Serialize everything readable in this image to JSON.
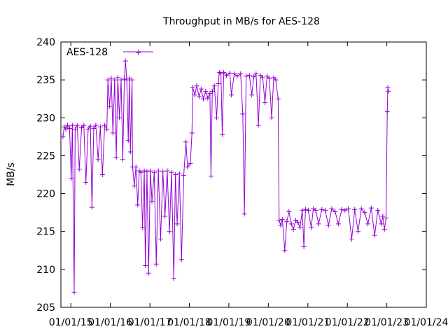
{
  "chart_data": {
    "type": "line",
    "title": "Throughput in MB/s for AES-128",
    "xlabel": "",
    "ylabel": "MB/s",
    "ylim": [
      205,
      240
    ],
    "yticks": [
      205,
      210,
      215,
      220,
      225,
      230,
      235,
      240
    ],
    "xlim": [
      "2014-10-01",
      "2024-01-01"
    ],
    "xticks": [
      "01/01/15",
      "01/01/16",
      "01/01/17",
      "01/01/18",
      "01/01/19",
      "01/01/20",
      "01/01/21",
      "01/01/22",
      "01/01/23",
      "01/01/24"
    ],
    "xtick_dates": [
      "2015-01-01",
      "2016-01-01",
      "2017-01-01",
      "2018-01-01",
      "2019-01-01",
      "2020-01-01",
      "2021-01-01",
      "2022-01-01",
      "2023-01-01",
      "2024-01-01"
    ],
    "legend": {
      "position": "top-left",
      "entries": [
        "AES-128"
      ]
    },
    "grid": false,
    "series": [
      {
        "name": "AES-128",
        "color": "#9400d3",
        "marker": "plus",
        "points": [
          [
            "2014-10-20",
            227.5
          ],
          [
            "2014-11-01",
            228.8
          ],
          [
            "2014-11-15",
            228.5
          ],
          [
            "2014-12-01",
            229.0
          ],
          [
            "2014-12-20",
            228.6
          ],
          [
            "2015-01-05",
            222.0
          ],
          [
            "2015-01-15",
            229.0
          ],
          [
            "2015-02-01",
            207.0
          ],
          [
            "2015-02-10",
            228.5
          ],
          [
            "2015-03-01",
            229.0
          ],
          [
            "2015-03-20",
            223.2
          ],
          [
            "2015-04-10",
            228.7
          ],
          [
            "2015-05-01",
            229.0
          ],
          [
            "2015-05-20",
            221.5
          ],
          [
            "2015-06-10",
            228.5
          ],
          [
            "2015-07-01",
            228.9
          ],
          [
            "2015-07-15",
            218.2
          ],
          [
            "2015-08-01",
            228.6
          ],
          [
            "2015-08-20",
            229.0
          ],
          [
            "2015-09-10",
            224.5
          ],
          [
            "2015-10-01",
            228.8
          ],
          [
            "2015-10-20",
            222.5
          ],
          [
            "2015-11-10",
            229.0
          ],
          [
            "2015-11-30",
            228.5
          ],
          [
            "2015-12-10",
            235.0
          ],
          [
            "2015-12-25",
            231.5
          ],
          [
            "2016-01-10",
            235.2
          ],
          [
            "2016-01-25",
            228.0
          ],
          [
            "2016-02-10",
            235.0
          ],
          [
            "2016-02-25",
            224.8
          ],
          [
            "2016-03-10",
            235.3
          ],
          [
            "2016-03-25",
            230.0
          ],
          [
            "2016-04-10",
            235.0
          ],
          [
            "2016-04-25",
            224.5
          ],
          [
            "2016-05-10",
            235.1
          ],
          [
            "2016-05-20",
            237.5
          ],
          [
            "2016-06-01",
            235.0
          ],
          [
            "2016-06-15",
            227.0
          ],
          [
            "2016-06-25",
            235.2
          ],
          [
            "2016-07-05",
            225.5
          ],
          [
            "2016-07-20",
            235.0
          ],
          [
            "2016-07-25",
            223.5
          ],
          [
            "2016-08-10",
            221.0
          ],
          [
            "2016-08-25",
            223.5
          ],
          [
            "2016-09-10",
            218.5
          ],
          [
            "2016-09-25",
            223.0
          ],
          [
            "2016-10-10",
            222.8
          ],
          [
            "2016-10-25",
            215.5
          ],
          [
            "2016-11-10",
            223.0
          ],
          [
            "2016-11-20",
            210.5
          ],
          [
            "2016-12-05",
            222.9
          ],
          [
            "2016-12-20",
            209.5
          ],
          [
            "2017-01-05",
            223.0
          ],
          [
            "2017-01-20",
            219.0
          ],
          [
            "2017-02-10",
            222.8
          ],
          [
            "2017-03-01",
            210.7
          ],
          [
            "2017-03-20",
            223.0
          ],
          [
            "2017-04-10",
            214.0
          ],
          [
            "2017-05-01",
            222.9
          ],
          [
            "2017-05-20",
            217.0
          ],
          [
            "2017-06-10",
            223.0
          ],
          [
            "2017-07-01",
            215.0
          ],
          [
            "2017-07-20",
            222.8
          ],
          [
            "2017-08-10",
            208.8
          ],
          [
            "2017-08-25",
            222.5
          ],
          [
            "2017-09-10",
            216.0
          ],
          [
            "2017-10-01",
            222.6
          ],
          [
            "2017-10-20",
            211.3
          ],
          [
            "2017-11-10",
            222.4
          ],
          [
            "2017-11-30",
            226.8
          ],
          [
            "2017-12-15",
            223.5
          ],
          [
            "2018-01-10",
            224.0
          ],
          [
            "2018-01-25",
            228.0
          ],
          [
            "2018-02-01",
            234.0
          ],
          [
            "2018-02-20",
            233.0
          ],
          [
            "2018-03-10",
            234.2
          ],
          [
            "2018-04-01",
            232.8
          ],
          [
            "2018-04-20",
            233.8
          ],
          [
            "2018-05-10",
            232.5
          ],
          [
            "2018-06-01",
            233.5
          ],
          [
            "2018-06-20",
            232.6
          ],
          [
            "2018-07-10",
            233.2
          ],
          [
            "2018-07-20",
            222.3
          ],
          [
            "2018-08-01",
            233.5
          ],
          [
            "2018-08-20",
            234.2
          ],
          [
            "2018-09-10",
            230.0
          ],
          [
            "2018-09-25",
            234.5
          ],
          [
            "2018-10-05",
            236.0
          ],
          [
            "2018-10-20",
            235.8
          ],
          [
            "2018-11-01",
            227.8
          ],
          [
            "2018-11-15",
            236.0
          ],
          [
            "2018-12-10",
            235.6
          ],
          [
            "2019-01-10",
            235.9
          ],
          [
            "2019-01-25",
            233.0
          ],
          [
            "2019-02-20",
            235.8
          ],
          [
            "2019-03-20",
            235.5
          ],
          [
            "2019-04-20",
            235.8
          ],
          [
            "2019-05-10",
            230.5
          ],
          [
            "2019-05-25",
            217.3
          ],
          [
            "2019-06-10",
            235.5
          ],
          [
            "2019-07-10",
            235.6
          ],
          [
            "2019-08-01",
            233.0
          ],
          [
            "2019-08-20",
            235.4
          ],
          [
            "2019-09-10",
            235.8
          ],
          [
            "2019-10-01",
            229.0
          ],
          [
            "2019-10-20",
            235.6
          ],
          [
            "2019-11-10",
            235.3
          ],
          [
            "2019-12-01",
            232.0
          ],
          [
            "2019-12-20",
            235.5
          ],
          [
            "2020-01-10",
            235.2
          ],
          [
            "2020-02-01",
            230.0
          ],
          [
            "2020-02-20",
            235.3
          ],
          [
            "2020-03-10",
            235.0
          ],
          [
            "2020-04-01",
            232.5
          ],
          [
            "2020-04-10",
            216.5
          ],
          [
            "2020-04-25",
            215.8
          ],
          [
            "2020-05-10",
            216.6
          ],
          [
            "2020-06-01",
            212.5
          ],
          [
            "2020-06-20",
            216.3
          ],
          [
            "2020-07-10",
            217.6
          ],
          [
            "2020-08-01",
            216.0
          ],
          [
            "2020-08-20",
            215.3
          ],
          [
            "2020-09-10",
            216.5
          ],
          [
            "2020-10-01",
            216.2
          ],
          [
            "2020-10-20",
            215.5
          ],
          [
            "2020-11-10",
            217.8
          ],
          [
            "2020-11-25",
            213.0
          ],
          [
            "2020-12-10",
            217.9
          ],
          [
            "2021-01-05",
            217.8
          ],
          [
            "2021-02-01",
            215.5
          ],
          [
            "2021-02-20",
            218.0
          ],
          [
            "2021-03-15",
            217.8
          ],
          [
            "2021-04-10",
            216.0
          ],
          [
            "2021-05-10",
            217.9
          ],
          [
            "2021-06-10",
            217.8
          ],
          [
            "2021-07-10",
            215.8
          ],
          [
            "2021-08-10",
            218.0
          ],
          [
            "2021-09-10",
            217.6
          ],
          [
            "2021-10-10",
            216.0
          ],
          [
            "2021-11-10",
            217.9
          ],
          [
            "2021-12-10",
            217.8
          ],
          [
            "2022-01-10",
            218.0
          ],
          [
            "2022-02-10",
            214.0
          ],
          [
            "2022-03-10",
            217.9
          ],
          [
            "2022-04-10",
            215.0
          ],
          [
            "2022-05-10",
            218.0
          ],
          [
            "2022-06-10",
            217.5
          ],
          [
            "2022-07-10",
            216.0
          ],
          [
            "2022-08-10",
            218.1
          ],
          [
            "2022-09-10",
            214.5
          ],
          [
            "2022-10-10",
            217.8
          ],
          [
            "2022-11-10",
            216.0
          ],
          [
            "2022-11-25",
            217.0
          ],
          [
            "2022-12-10",
            215.3
          ],
          [
            "2022-12-25",
            216.8
          ],
          [
            "2023-01-05",
            230.8
          ],
          [
            "2023-01-10",
            234.0
          ],
          [
            "2023-01-15",
            233.5
          ]
        ]
      }
    ]
  }
}
